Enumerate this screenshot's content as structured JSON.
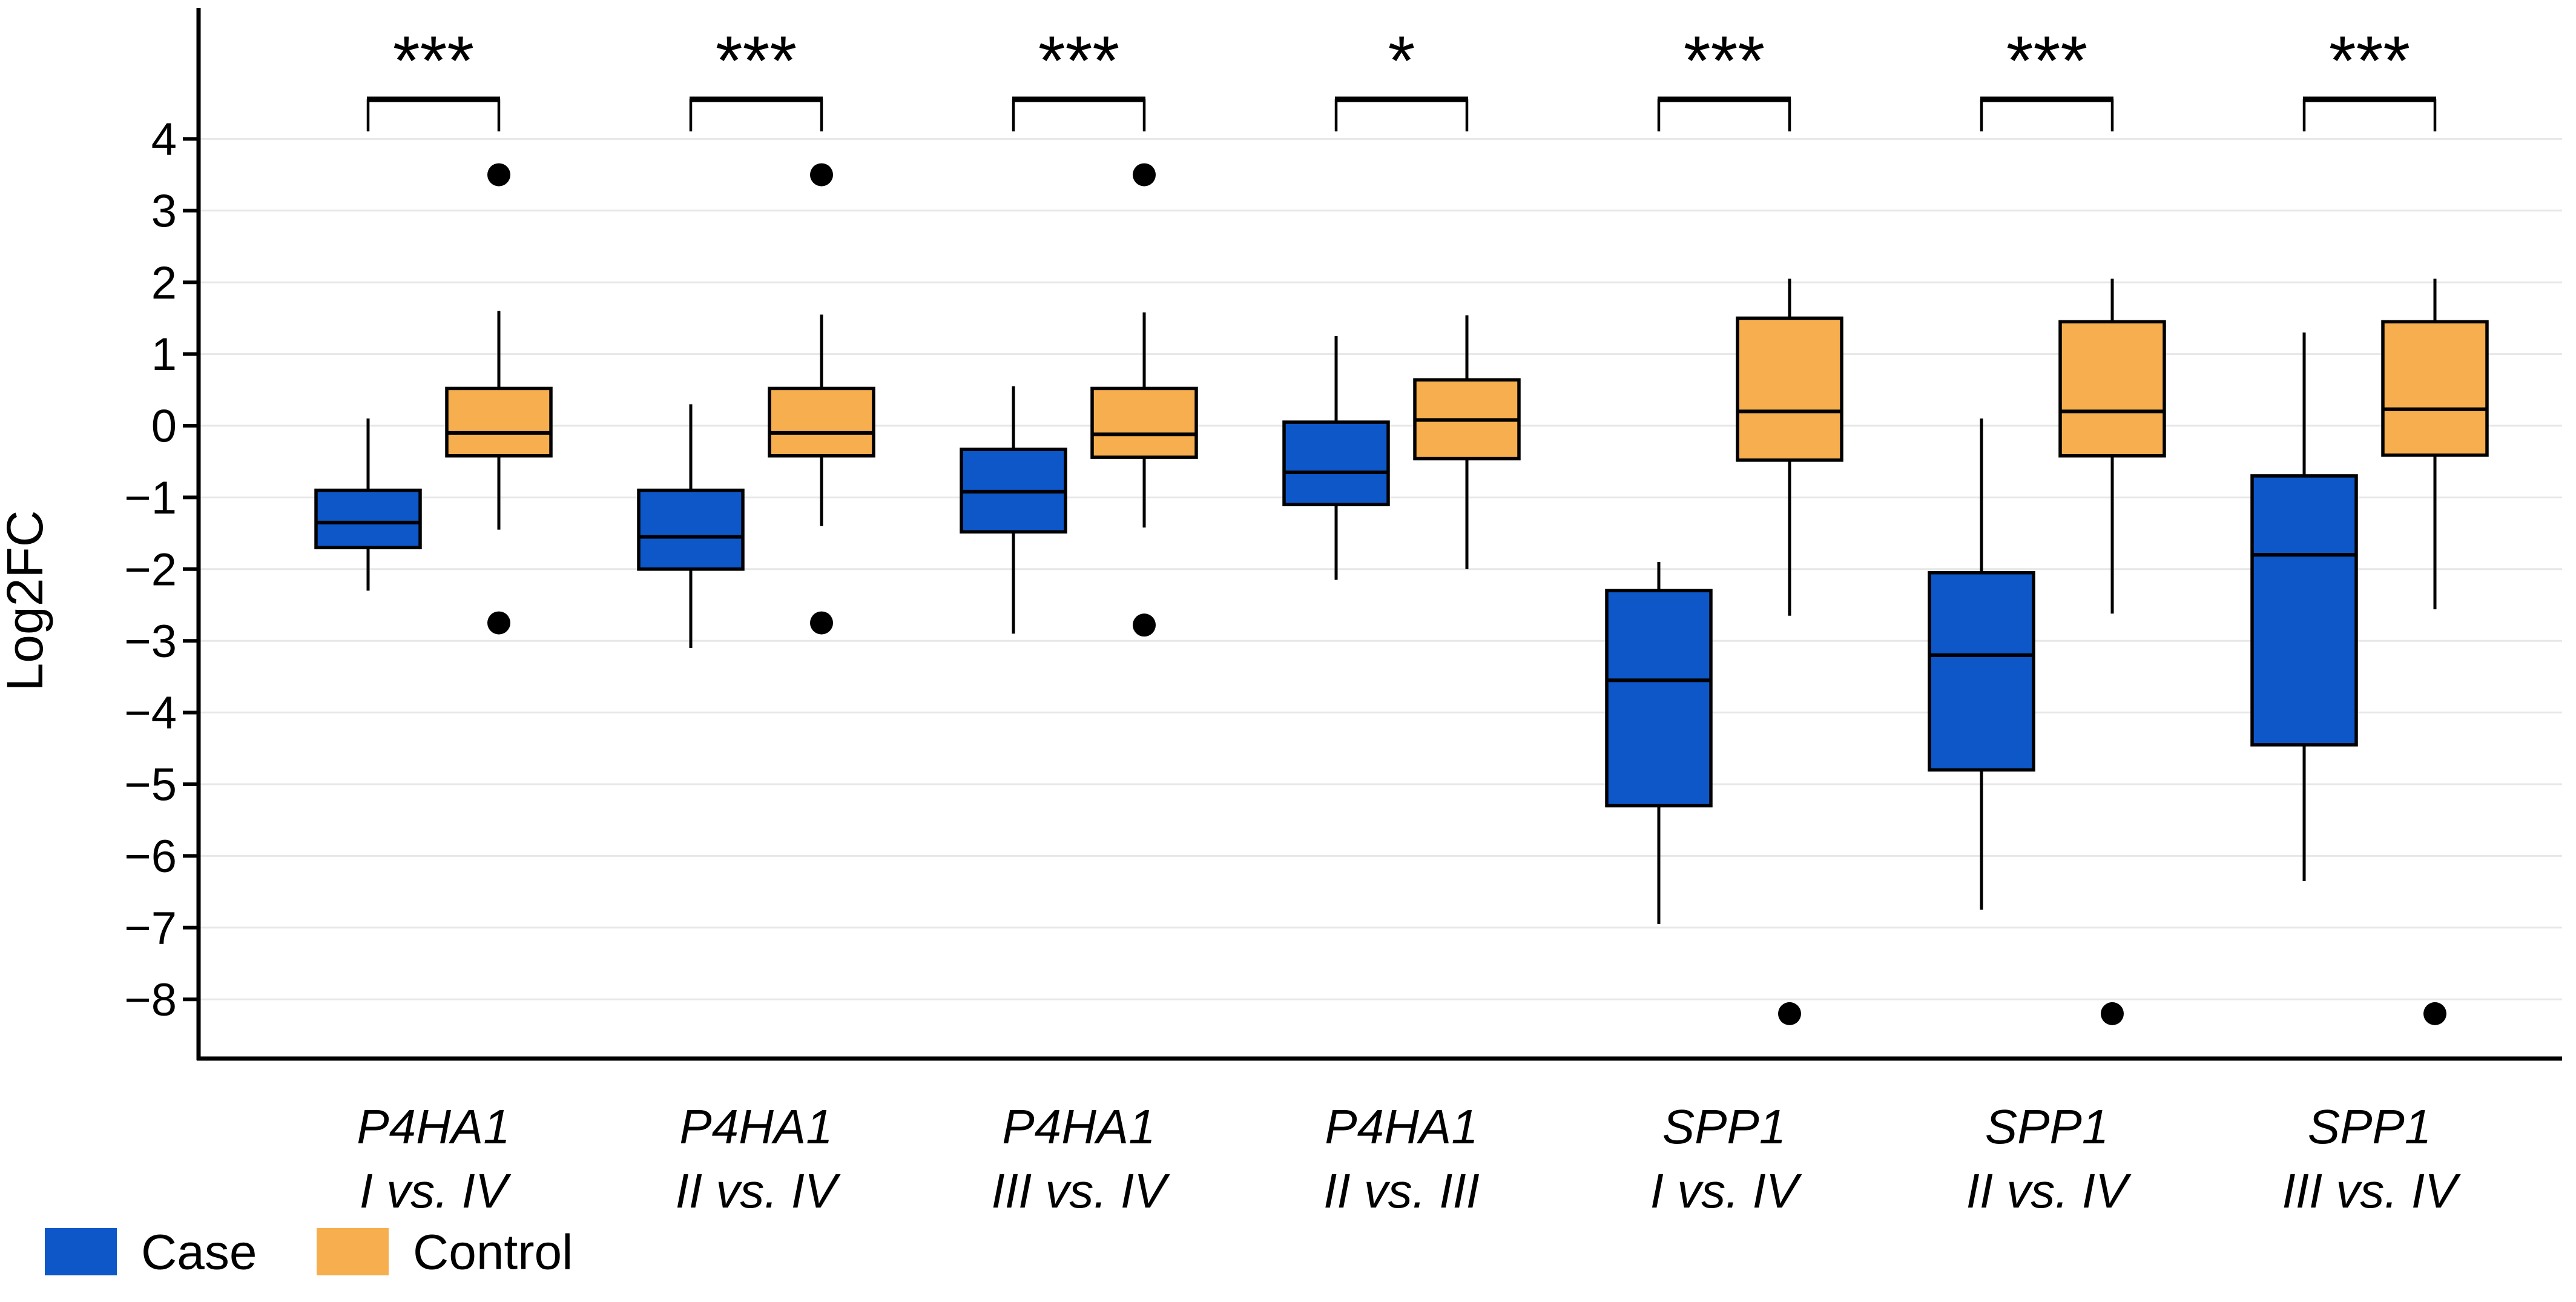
{
  "figure": {
    "ylabel": "Log2FC",
    "legend": [
      {
        "label": "Case",
        "color": "#0d57c8"
      },
      {
        "label": "Control",
        "color": "#f6ae4e"
      }
    ]
  },
  "chart_data": {
    "type": "boxplot",
    "title": "",
    "xlabel": "",
    "ylabel": "Log2FC",
    "grid": true,
    "legend_position": "bottom-left",
    "ylim": [
      -8.8,
      5.8
    ],
    "yticks": [
      4,
      3,
      2,
      1,
      0,
      -1,
      -2,
      -3,
      -4,
      -5,
      -6,
      -7,
      -8
    ],
    "ytick_labels": [
      "4",
      "3",
      "2",
      "1",
      "0",
      "−1",
      "−2",
      "−3",
      "−4",
      "−5",
      "−6",
      "−7",
      "−8"
    ],
    "series": [
      {
        "name": "Case",
        "color": "#0d57c8"
      },
      {
        "name": "Control",
        "color": "#f6ae4e"
      }
    ],
    "colors": {
      "case": "#0d57c8",
      "control": "#f6ae4e",
      "outlier": "#000000",
      "gridline": "#e7e7e7",
      "axis": "#000000"
    },
    "groups": [
      {
        "gene": "P4HA1",
        "comparison": "I vs. IV",
        "significance": "***",
        "case": {
          "whisker_low": -2.3,
          "q1": -1.7,
          "median": -1.35,
          "q3": -0.9,
          "whisker_high": 0.1,
          "outliers": []
        },
        "control": {
          "whisker_low": -1.45,
          "q1": -0.42,
          "median": -0.1,
          "q3": 0.52,
          "whisker_high": 1.6,
          "outliers": [
            3.5,
            -2.75
          ]
        }
      },
      {
        "gene": "P4HA1",
        "comparison": "II vs. IV",
        "significance": "***",
        "case": {
          "whisker_low": -3.1,
          "q1": -2.0,
          "median": -1.55,
          "q3": -0.9,
          "whisker_high": 0.3,
          "outliers": []
        },
        "control": {
          "whisker_low": -1.4,
          "q1": -0.42,
          "median": -0.1,
          "q3": 0.52,
          "whisker_high": 1.55,
          "outliers": [
            3.5,
            -2.75
          ]
        }
      },
      {
        "gene": "P4HA1",
        "comparison": "III vs. IV",
        "significance": "***",
        "case": {
          "whisker_low": -2.9,
          "q1": -1.48,
          "median": -0.92,
          "q3": -0.33,
          "whisker_high": 0.55,
          "outliers": []
        },
        "control": {
          "whisker_low": -1.42,
          "q1": -0.44,
          "median": -0.12,
          "q3": 0.52,
          "whisker_high": 1.58,
          "outliers": [
            3.5,
            -2.78
          ]
        }
      },
      {
        "gene": "P4HA1",
        "comparison": "II vs. III",
        "significance": "*",
        "case": {
          "whisker_low": -2.15,
          "q1": -1.1,
          "median": -0.65,
          "q3": 0.05,
          "whisker_high": 1.25,
          "outliers": []
        },
        "control": {
          "whisker_low": -2.0,
          "q1": -0.46,
          "median": 0.08,
          "q3": 0.64,
          "whisker_high": 1.54,
          "outliers": []
        }
      },
      {
        "gene": "SPP1",
        "comparison": "I vs. IV",
        "significance": "***",
        "case": {
          "whisker_low": -6.95,
          "q1": -5.3,
          "median": -3.55,
          "q3": -2.3,
          "whisker_high": -1.9,
          "outliers": []
        },
        "control": {
          "whisker_low": -2.65,
          "q1": -0.48,
          "median": 0.2,
          "q3": 1.5,
          "whisker_high": 2.05,
          "outliers": [
            -8.2
          ]
        }
      },
      {
        "gene": "SPP1",
        "comparison": "II vs. IV",
        "significance": "***",
        "case": {
          "whisker_low": -6.75,
          "q1": -4.8,
          "median": -3.2,
          "q3": -2.05,
          "whisker_high": 0.1,
          "outliers": []
        },
        "control": {
          "whisker_low": -2.62,
          "q1": -0.42,
          "median": 0.2,
          "q3": 1.45,
          "whisker_high": 2.05,
          "outliers": [
            -8.2
          ]
        }
      },
      {
        "gene": "SPP1",
        "comparison": "III vs. IV",
        "significance": "***",
        "case": {
          "whisker_low": -6.35,
          "q1": -4.45,
          "median": -1.8,
          "q3": -0.7,
          "whisker_high": 1.3,
          "outliers": []
        },
        "control": {
          "whisker_low": -2.56,
          "q1": -0.41,
          "median": 0.23,
          "q3": 1.45,
          "whisker_high": 2.05,
          "outliers": [
            -8.2
          ]
        }
      }
    ]
  }
}
